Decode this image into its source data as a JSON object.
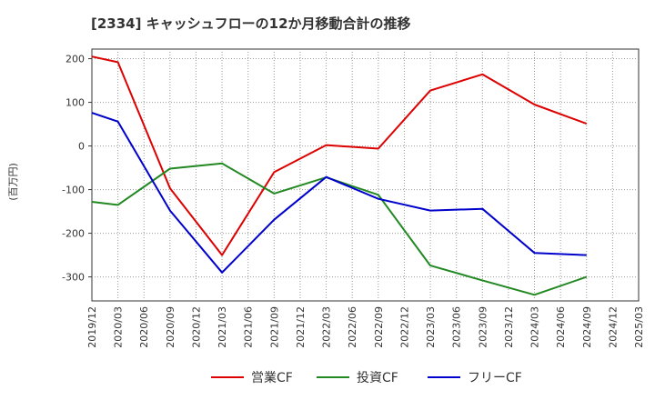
{
  "chart_data": {
    "type": "line",
    "title": "[2334]  キャッシュフローの12か月移動合計の推移",
    "ylabel": "(百万円)",
    "xlabel": "",
    "ylim": [
      -355,
      222
    ],
    "yticks": [
      -300,
      -200,
      -100,
      0,
      100,
      200
    ],
    "ytick_labels": [
      "-300",
      "-200",
      "-100",
      "0",
      "100",
      "200"
    ],
    "categories": [
      "2019/12",
      "2020/03",
      "2020/06",
      "2020/09",
      "2020/12",
      "2021/03",
      "2021/06",
      "2021/09",
      "2021/12",
      "2022/03",
      "2022/06",
      "2022/09",
      "2022/12",
      "2023/03",
      "2023/06",
      "2023/09",
      "2023/12",
      "2024/03",
      "2024/06",
      "2024/09",
      "2024/12",
      "2025/03"
    ],
    "grid": true,
    "legend_position": "bottom",
    "series": [
      {
        "name": "営業CF",
        "color": "#dd0000",
        "values": [
          205,
          192,
          null,
          -97,
          null,
          -250,
          null,
          -60,
          null,
          2,
          null,
          -6,
          null,
          127,
          null,
          164,
          null,
          95,
          null,
          51,
          null,
          null
        ]
      },
      {
        "name": "投資CF",
        "color": "#228822",
        "values": [
          -128,
          -135,
          null,
          -52,
          null,
          -40,
          null,
          -109,
          null,
          -72,
          null,
          -112,
          null,
          -274,
          null,
          -308,
          null,
          -341,
          null,
          -300,
          null,
          null
        ]
      },
      {
        "name": "フリーCF",
        "color": "#0000cc",
        "values": [
          76,
          56,
          null,
          -148,
          null,
          -290,
          null,
          -169,
          null,
          -71,
          null,
          -121,
          null,
          -148,
          null,
          -144,
          null,
          -245,
          null,
          -250,
          null,
          null
        ]
      }
    ]
  }
}
